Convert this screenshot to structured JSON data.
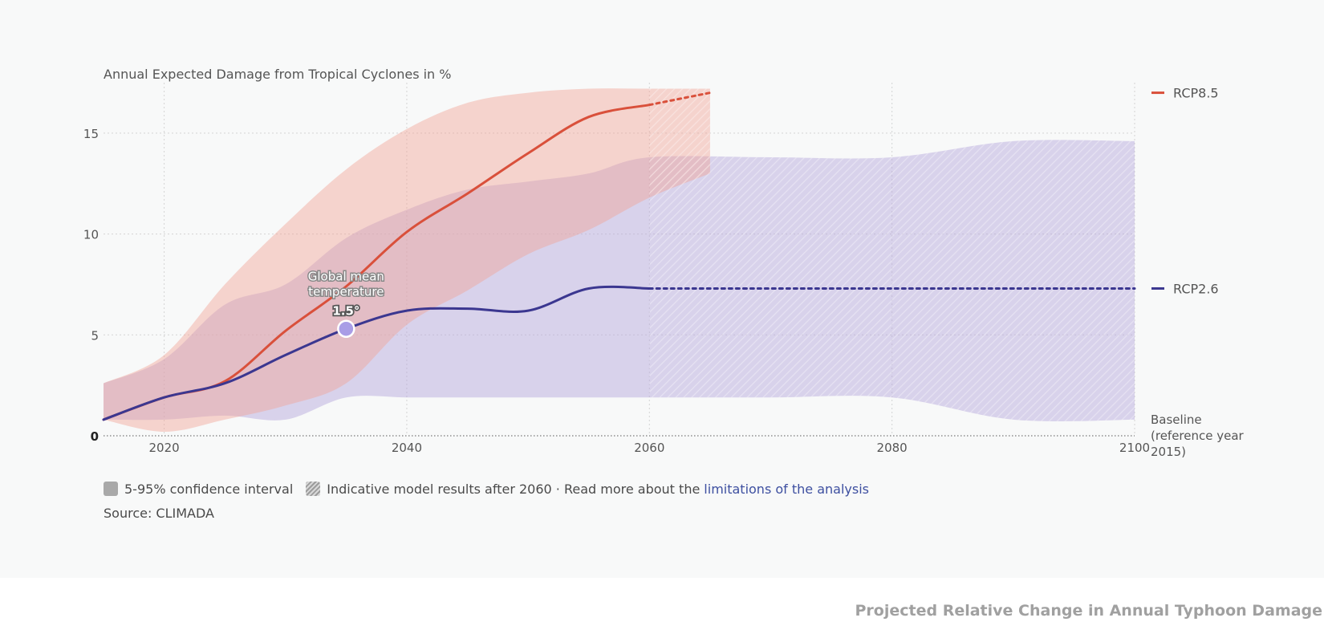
{
  "chart_data": {
    "type": "line",
    "title": "Annual Expected Damage from Tropical Cyclones in %",
    "xlim": [
      2015,
      2100
    ],
    "ylim": [
      0,
      17.5
    ],
    "x_ticks": [
      2020,
      2040,
      2060,
      2080,
      2100
    ],
    "y_ticks": [
      0,
      5,
      10,
      15
    ],
    "grid": true,
    "series": [
      {
        "name": "RCP8.5",
        "color": "#d9503b",
        "band_color": "#f2a596",
        "x": [
          2015,
          2020,
          2025,
          2030,
          2035,
          2040,
          2045,
          2050,
          2055,
          2060,
          2065
        ],
        "values": [
          0.8,
          1.9,
          2.7,
          5.2,
          7.4,
          10.1,
          12.0,
          14.0,
          15.8,
          16.4,
          17.0
        ],
        "lower": [
          0.8,
          0.2,
          0.8,
          1.5,
          2.6,
          5.5,
          7.2,
          9.0,
          10.2,
          11.8,
          13.0
        ],
        "upper": [
          2.6,
          4.0,
          7.5,
          10.5,
          13.2,
          15.2,
          16.5,
          17.0,
          17.2,
          17.2,
          17.2
        ],
        "dashed_from": 2060
      },
      {
        "name": "RCP2.6",
        "color": "#3b3790",
        "band_color": "#b6a8dc",
        "x": [
          2015,
          2020,
          2025,
          2030,
          2035,
          2040,
          2045,
          2050,
          2055,
          2060,
          2070,
          2080,
          2090,
          2100
        ],
        "values": [
          0.8,
          1.9,
          2.6,
          4.0,
          5.3,
          6.2,
          6.3,
          6.2,
          7.3,
          7.3,
          7.3,
          7.3,
          7.3,
          7.3
        ],
        "lower": [
          0.8,
          0.8,
          1.0,
          0.8,
          1.9,
          1.9,
          1.9,
          1.9,
          1.9,
          1.9,
          1.9,
          1.9,
          0.8,
          0.8
        ],
        "upper": [
          2.6,
          3.8,
          6.5,
          7.5,
          9.8,
          11.2,
          12.2,
          12.6,
          13.0,
          13.8,
          13.8,
          13.8,
          14.6,
          14.6
        ],
        "dashed_from": 2060
      }
    ],
    "hatch_from": 2060,
    "annotation": {
      "label_lines": [
        "Global mean",
        "temperature"
      ],
      "value": "1.5°",
      "x": 2035,
      "y": 5.3
    },
    "baseline_label_lines": [
      "Baseline",
      "(reference year",
      "2015)"
    ]
  },
  "legend": {
    "confidence": "5-95% confidence interval",
    "indicative": "Indicative model results after 2060 · Read more about the",
    "link": "limitations of the analysis"
  },
  "source": "Source: CLIMADA",
  "caption": "Projected Relative Change in Annual Typhoon Damage"
}
